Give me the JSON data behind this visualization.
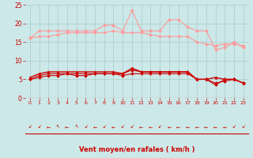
{
  "x": [
    0,
    1,
    2,
    3,
    4,
    5,
    6,
    7,
    8,
    9,
    10,
    11,
    12,
    13,
    14,
    15,
    16,
    17,
    18,
    19,
    20,
    21,
    22,
    23
  ],
  "series": [
    {
      "name": "rafales_max",
      "color": "#ff9999",
      "linewidth": 0.8,
      "marker": "D",
      "markersize": 2.0,
      "values": [
        16.0,
        18.0,
        18.0,
        18.0,
        18.0,
        18.0,
        18.0,
        18.0,
        19.5,
        19.5,
        18.0,
        23.5,
        18.0,
        18.0,
        18.0,
        21.0,
        21.0,
        19.0,
        18.0,
        18.0,
        13.0,
        13.5,
        15.0,
        13.5
      ]
    },
    {
      "name": "vent_moyen_max",
      "color": "#ff9999",
      "linewidth": 0.8,
      "marker": "D",
      "markersize": 2.0,
      "values": [
        16.0,
        16.5,
        16.5,
        17.0,
        17.5,
        17.5,
        17.5,
        17.5,
        17.5,
        18.0,
        17.5,
        17.5,
        17.5,
        17.0,
        16.5,
        16.5,
        16.5,
        16.5,
        15.0,
        14.5,
        14.0,
        14.5,
        14.5,
        14.0
      ]
    },
    {
      "name": "vent_moyen",
      "color": "#cc0000",
      "linewidth": 1.0,
      "marker": "^",
      "markersize": 2.5,
      "values": [
        5.5,
        6.5,
        7.0,
        7.0,
        7.0,
        7.0,
        7.0,
        7.0,
        7.0,
        7.0,
        6.5,
        8.0,
        7.0,
        7.0,
        7.0,
        7.0,
        7.0,
        7.0,
        5.0,
        5.0,
        5.5,
        5.0,
        5.0,
        4.0
      ]
    },
    {
      "name": "vent_min",
      "color": "#cc0000",
      "linewidth": 0.8,
      "marker": "D",
      "markersize": 2.0,
      "values": [
        5.0,
        6.0,
        6.5,
        6.5,
        6.5,
        6.5,
        6.5,
        6.5,
        6.5,
        6.5,
        6.5,
        7.5,
        7.0,
        7.0,
        7.0,
        7.0,
        7.0,
        7.0,
        5.0,
        5.0,
        3.5,
        5.0,
        5.0,
        4.0
      ]
    },
    {
      "name": "vent_min2",
      "color": "#cc0000",
      "linewidth": 0.8,
      "marker": "D",
      "markersize": 2.0,
      "values": [
        5.0,
        5.5,
        6.0,
        6.0,
        6.5,
        6.0,
        6.0,
        6.5,
        6.5,
        6.5,
        6.0,
        6.5,
        6.5,
        6.5,
        6.5,
        6.5,
        6.5,
        6.5,
        5.0,
        5.0,
        4.0,
        4.5,
        5.0,
        4.0
      ]
    }
  ],
  "xlabel": "Vent moyen/en rafales ( km/h )",
  "xlim": [
    -0.5,
    23.5
  ],
  "ylim": [
    0,
    25
  ],
  "yticks": [
    0,
    5,
    10,
    15,
    20,
    25
  ],
  "xticks": [
    0,
    1,
    2,
    3,
    4,
    5,
    6,
    7,
    8,
    9,
    10,
    11,
    12,
    13,
    14,
    15,
    16,
    17,
    18,
    19,
    20,
    21,
    22,
    23
  ],
  "bg_color": "#cce8e8",
  "grid_color": "#aacccc",
  "xlabel_color": "#cc0000",
  "tick_color": "#cc0000",
  "arrow_color": "#cc0000",
  "arrow_chars": [
    "↙",
    "↙",
    "←",
    "↖",
    "←",
    "↖",
    "↙",
    "←",
    "↙",
    "←",
    "↙",
    "↙",
    "←",
    "←",
    "↙",
    "←",
    "←",
    "←",
    "←",
    "←",
    "←",
    "←",
    "↙",
    "↙"
  ]
}
